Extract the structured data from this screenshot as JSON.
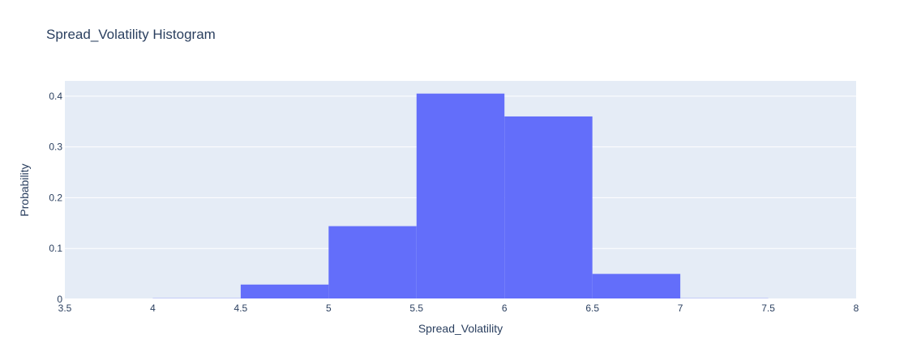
{
  "chart_data": {
    "type": "bar",
    "title": "Spread_Volatility Histogram",
    "xlabel": "Spread_Volatility",
    "ylabel": "Probability",
    "xlim": [
      3.5,
      8
    ],
    "ylim": [
      0,
      0.43
    ],
    "x_ticks": [
      "3.5",
      "4",
      "4.5",
      "5",
      "5.5",
      "6",
      "6.5",
      "7",
      "7.5",
      "8"
    ],
    "y_ticks": [
      "0",
      "0.1",
      "0.2",
      "0.3",
      "0.4"
    ],
    "bins": [
      {
        "x0": 3.5,
        "x1": 4.0,
        "value": 0.0005
      },
      {
        "x0": 4.0,
        "x1": 4.5,
        "value": 0.002
      },
      {
        "x0": 4.5,
        "x1": 5.0,
        "value": 0.029
      },
      {
        "x0": 5.0,
        "x1": 5.5,
        "value": 0.144
      },
      {
        "x0": 5.5,
        "x1": 6.0,
        "value": 0.405
      },
      {
        "x0": 6.0,
        "x1": 6.5,
        "value": 0.36
      },
      {
        "x0": 6.5,
        "x1": 7.0,
        "value": 0.05
      },
      {
        "x0": 7.0,
        "x1": 7.5,
        "value": 0.002
      },
      {
        "x0": 7.5,
        "x1": 8.0,
        "value": 0.0005
      }
    ],
    "grid": true,
    "colors": {
      "bar": "#636efa",
      "plot_bg": "#e5ecf6",
      "grid": "#ffffff",
      "text": "#2a3f5f"
    }
  }
}
